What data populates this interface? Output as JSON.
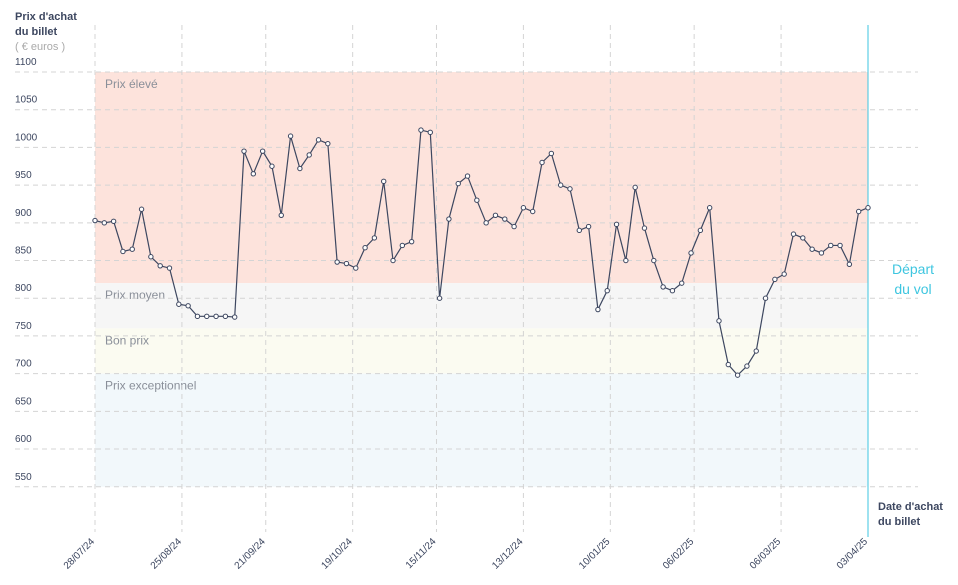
{
  "chart_data": {
    "type": "line",
    "ylabel": [
      "Prix d'achat",
      "du billet"
    ],
    "yunit": "( € euros )",
    "xlabel": [
      "Date d'achat",
      "du billet"
    ],
    "annotation": [
      "Départ",
      "du vol"
    ],
    "annotation_color": "#3ec6e0",
    "bands": [
      {
        "label": "Prix élevé",
        "from": 820,
        "to": 1100,
        "color": "#fde3dc"
      },
      {
        "label": "Prix moyen",
        "from": 760,
        "to": 820,
        "color": "#f6f6f6"
      },
      {
        "label": "Bon prix",
        "from": 700,
        "to": 760,
        "color": "#fbfbf1"
      },
      {
        "label": "Prix exceptionnel",
        "from": 550,
        "to": 700,
        "color": "#f2f8fb"
      }
    ],
    "ylim": [
      490,
      1100
    ],
    "yticks": [
      550,
      600,
      650,
      700,
      750,
      800,
      850,
      900,
      950,
      1000,
      1050,
      1100
    ],
    "xlim": [
      "2024-07-28",
      "2025-04-03"
    ],
    "xticks": [
      {
        "value": "2024-07-28",
        "label": "28/07/24"
      },
      {
        "value": "2024-08-25",
        "label": "25/08/24"
      },
      {
        "value": "2024-09-21",
        "label": "21/09/24"
      },
      {
        "value": "2024-10-19",
        "label": "19/10/24"
      },
      {
        "value": "2024-11-15",
        "label": "15/11/24"
      },
      {
        "value": "2024-12-13",
        "label": "13/12/24"
      },
      {
        "value": "2025-01-10",
        "label": "10/01/25"
      },
      {
        "value": "2025-02-06",
        "label": "06/02/25"
      },
      {
        "value": "2025-03-06",
        "label": "06/03/25"
      },
      {
        "value": "2025-04-03",
        "label": "03/04/25"
      }
    ],
    "grid": true,
    "x": [
      "2024-07-28",
      "2024-07-31",
      "2024-08-03",
      "2024-08-06",
      "2024-08-09",
      "2024-08-12",
      "2024-08-15",
      "2024-08-18",
      "2024-08-21",
      "2024-08-24",
      "2024-08-27",
      "2024-08-30",
      "2024-09-02",
      "2024-09-05",
      "2024-09-08",
      "2024-09-11",
      "2024-09-14",
      "2024-09-17",
      "2024-09-20",
      "2024-09-23",
      "2024-09-26",
      "2024-09-29",
      "2024-10-02",
      "2024-10-05",
      "2024-10-08",
      "2024-10-11",
      "2024-10-14",
      "2024-10-17",
      "2024-10-20",
      "2024-10-23",
      "2024-10-26",
      "2024-10-29",
      "2024-11-01",
      "2024-11-04",
      "2024-11-07",
      "2024-11-10",
      "2024-11-13",
      "2024-11-16",
      "2024-11-19",
      "2024-11-22",
      "2024-11-25",
      "2024-11-28",
      "2024-12-01",
      "2024-12-04",
      "2024-12-07",
      "2024-12-10",
      "2024-12-13",
      "2024-12-16",
      "2024-12-19",
      "2024-12-22",
      "2024-12-25",
      "2024-12-28",
      "2024-12-31",
      "2025-01-03",
      "2025-01-06",
      "2025-01-09",
      "2025-01-12",
      "2025-01-15",
      "2025-01-18",
      "2025-01-21",
      "2025-01-24",
      "2025-01-27",
      "2025-01-30",
      "2025-02-02",
      "2025-02-05",
      "2025-02-08",
      "2025-02-11",
      "2025-02-14",
      "2025-02-17",
      "2025-02-20",
      "2025-02-23",
      "2025-02-26",
      "2025-03-01",
      "2025-03-04",
      "2025-03-07",
      "2025-03-10",
      "2025-03-13",
      "2025-03-16",
      "2025-03-19",
      "2025-03-22",
      "2025-03-25",
      "2025-03-28",
      "2025-03-31",
      "2025-04-03"
    ],
    "series": [
      {
        "color": "#3d4760",
        "values": [
          903,
          900,
          902,
          862,
          865,
          918,
          855,
          843,
          840,
          792,
          790,
          776,
          776,
          776,
          776,
          775,
          995,
          965,
          995,
          975,
          910,
          1015,
          972,
          990,
          1010,
          1005,
          848,
          846,
          840,
          867,
          880,
          955,
          850,
          870,
          875,
          1023,
          1020,
          800,
          905,
          952,
          962,
          930,
          900,
          910,
          905,
          895,
          920,
          915,
          980,
          992,
          950,
          945,
          890,
          895,
          785,
          810,
          898,
          850,
          947,
          893,
          850,
          815,
          810,
          820,
          860,
          890,
          920,
          770,
          712,
          698,
          710,
          730,
          800,
          825,
          832,
          885,
          880,
          865,
          860,
          870,
          870,
          845,
          915,
          920
        ]
      }
    ]
  }
}
